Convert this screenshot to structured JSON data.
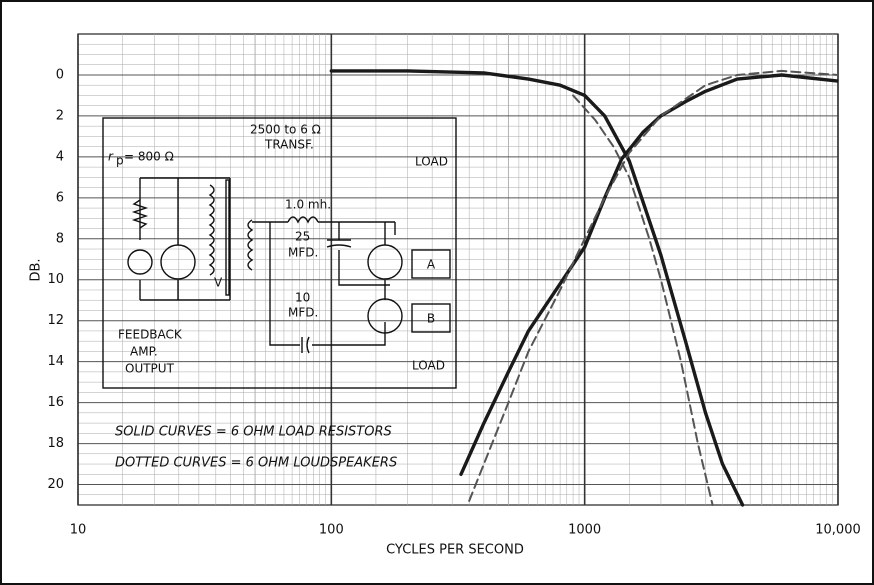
{
  "chart_data": {
    "type": "line",
    "xlabel": "CYCLES PER SECOND",
    "ylabel": "DB.",
    "xscale": "log",
    "grid": true,
    "xlim": [
      10,
      10000
    ],
    "xticks": [
      10,
      100,
      1000,
      {
        "value": 10000,
        "label": "10,000"
      }
    ],
    "ylim": [
      21,
      -2
    ],
    "yticks": [
      0,
      2,
      4,
      6,
      8,
      10,
      12,
      14,
      16,
      18,
      20
    ],
    "annotations": [
      "SOLID CURVES = 6 OHM LOAD RESISTORS",
      "DOTTED CURVES = 6 OHM LOUDSPEAKERS"
    ],
    "series": [
      {
        "color": "#1a1a1a",
        "style": "solid",
        "x": [
          100,
          200,
          400,
          600,
          800,
          1000,
          1200,
          1500,
          2000,
          2500,
          3000,
          3500,
          4200
        ],
        "values": [
          -0.2,
          -0.2,
          -0.1,
          0.2,
          0.5,
          1,
          2,
          4.2,
          8.8,
          13,
          16.5,
          19,
          21
        ]
      },
      {
        "color": "#1a1a1a",
        "style": "solid",
        "x": [
          325,
          400,
          500,
          600,
          800,
          1000,
          1200,
          1400,
          1700,
          2000,
          2500,
          3000,
          4000,
          6000,
          10000
        ],
        "values": [
          19.5,
          17,
          14.5,
          12.5,
          10.2,
          8.4,
          6,
          4.1,
          2.8,
          2,
          1.3,
          0.8,
          0.2,
          0,
          0.3
        ]
      },
      {
        "color": "#555555",
        "style": "dashed",
        "x": [
          900,
          1100,
          1300,
          1500,
          1800,
          2000,
          2400,
          2800,
          3200
        ],
        "values": [
          1,
          2.2,
          3.5,
          5,
          8,
          10,
          14,
          18,
          21
        ]
      },
      {
        "color": "#555555",
        "style": "dashed",
        "x": [
          350,
          400,
          500,
          600,
          800,
          1000,
          1200,
          1500,
          2000,
          3000,
          4000,
          6000,
          10000
        ],
        "values": [
          20.8,
          19,
          16,
          13.5,
          10.5,
          8,
          6,
          3.8,
          2,
          0.5,
          0,
          -0.2,
          0
        ]
      }
    ],
    "diagram": {
      "labels": [
        "r",
        "p",
        "= 800 Ω",
        "2500 to 6 Ω",
        "TRANSF.",
        "1.0 mh.",
        "LOAD",
        "25",
        "MFD.",
        "A",
        "10",
        "MFD.",
        "B",
        "FEEDBACK",
        "AMP.",
        "OUTPUT",
        "LOAD",
        "V"
      ]
    }
  }
}
